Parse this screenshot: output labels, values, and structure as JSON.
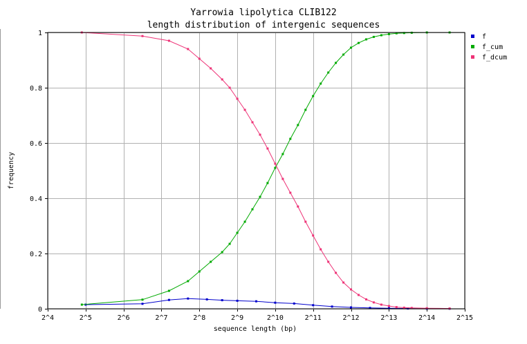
{
  "chart_data": {
    "type": "line",
    "title": "Yarrowia lipolytica CLIB122",
    "subtitle": "length distribution of intergenic sequences",
    "xlabel": "sequence length (bp)",
    "ylabel": "frequency",
    "x_scale": "log2",
    "xlim_log2": [
      4,
      15
    ],
    "ylim": [
      0,
      1
    ],
    "grid": true,
    "legend_position": "right",
    "x_ticks": [
      {
        "label": "2^4",
        "value": 4
      },
      {
        "label": "2^5",
        "value": 5
      },
      {
        "label": "2^6",
        "value": 6
      },
      {
        "label": "2^7",
        "value": 7
      },
      {
        "label": "2^8",
        "value": 8
      },
      {
        "label": "2^9",
        "value": 9
      },
      {
        "label": "2^10",
        "value": 10
      },
      {
        "label": "2^11",
        "value": 11
      },
      {
        "label": "2^12",
        "value": 12
      },
      {
        "label": "2^13",
        "value": 13
      },
      {
        "label": "2^14",
        "value": 14
      },
      {
        "label": "2^15",
        "value": 15
      }
    ],
    "y_ticks": [
      {
        "label": "0",
        "value": 0
      },
      {
        "label": "0.2",
        "value": 0.2
      },
      {
        "label": "0.4",
        "value": 0.4
      },
      {
        "label": "0.6",
        "value": 0.6
      },
      {
        "label": "0.8",
        "value": 0.8
      },
      {
        "label": "1",
        "value": 1
      }
    ],
    "series": [
      {
        "name": "f",
        "color": "#0000cc",
        "x_log2": [
          5.0,
          6.5,
          7.2,
          7.7,
          8.2,
          8.6,
          9.0,
          9.5,
          10.0,
          10.5,
          11.0,
          11.5,
          12.0,
          12.5,
          13.0,
          13.5,
          14.0,
          14.6
        ],
        "y": [
          0.015,
          0.018,
          0.032,
          0.037,
          0.034,
          0.031,
          0.029,
          0.027,
          0.022,
          0.019,
          0.013,
          0.008,
          0.005,
          0.003,
          0.002,
          0.001,
          0.0005,
          0.0002
        ]
      },
      {
        "name": "f_cum",
        "color": "#00aa00",
        "x_log2": [
          4.9,
          6.5,
          7.2,
          7.7,
          8.0,
          8.3,
          8.6,
          8.8,
          9.0,
          9.2,
          9.4,
          9.6,
          9.8,
          10.0,
          10.2,
          10.4,
          10.6,
          10.8,
          11.0,
          11.2,
          11.4,
          11.6,
          11.8,
          12.0,
          12.2,
          12.4,
          12.6,
          12.8,
          13.0,
          13.2,
          13.4,
          13.6,
          14.0,
          14.6
        ],
        "y": [
          0.015,
          0.033,
          0.065,
          0.1,
          0.135,
          0.17,
          0.205,
          0.235,
          0.275,
          0.315,
          0.36,
          0.405,
          0.455,
          0.51,
          0.56,
          0.615,
          0.665,
          0.72,
          0.77,
          0.815,
          0.855,
          0.89,
          0.92,
          0.945,
          0.962,
          0.975,
          0.984,
          0.99,
          0.994,
          0.997,
          0.998,
          0.999,
          1.0,
          1.0
        ]
      },
      {
        "name": "f_dcum",
        "color": "#ee3377",
        "x_log2": [
          4.9,
          6.5,
          7.2,
          7.7,
          8.0,
          8.3,
          8.6,
          8.8,
          9.0,
          9.2,
          9.4,
          9.6,
          9.8,
          10.0,
          10.2,
          10.4,
          10.6,
          10.8,
          11.0,
          11.2,
          11.4,
          11.6,
          11.8,
          12.0,
          12.2,
          12.4,
          12.6,
          12.8,
          13.0,
          13.2,
          13.4,
          13.6,
          14.0,
          14.6
        ],
        "y": [
          1.0,
          0.987,
          0.97,
          0.94,
          0.905,
          0.87,
          0.83,
          0.8,
          0.76,
          0.72,
          0.675,
          0.63,
          0.58,
          0.525,
          0.47,
          0.42,
          0.37,
          0.315,
          0.265,
          0.215,
          0.17,
          0.13,
          0.095,
          0.07,
          0.05,
          0.034,
          0.023,
          0.015,
          0.01,
          0.006,
          0.004,
          0.003,
          0.002,
          0.001
        ]
      }
    ]
  }
}
